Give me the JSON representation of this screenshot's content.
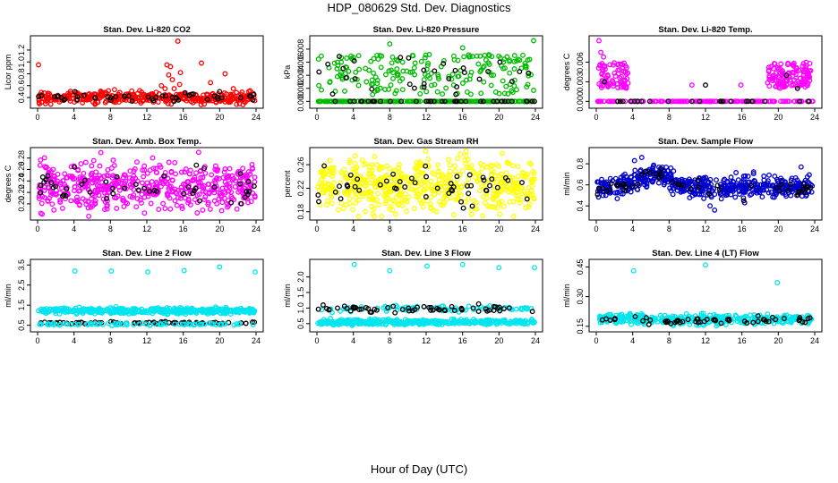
{
  "figure": {
    "title": "HDP_080629  Std. Dev. Diagnostics",
    "xlabel": "Hour of Day (UTC)"
  },
  "chart_data": [
    {
      "type": "scatter",
      "title": "Stan. Dev. Li-820 CO2",
      "ylabel": "Licor ppm",
      "xlim": [
        0,
        24
      ],
      "ylim": [
        0.28,
        1.38
      ],
      "xticks": [
        0,
        4,
        8,
        12,
        16,
        20,
        24
      ],
      "yticks": [
        0.4,
        0.6,
        0.8,
        1.0,
        1.2
      ],
      "ytick_labels": [
        "0.4",
        "0.6",
        "0.8",
        "1.0",
        "1.2"
      ],
      "grid": false,
      "series": [
        {
          "color": "#ff0000",
          "generate": {
            "count": 380,
            "kind": "noise",
            "base": 0.4,
            "spread": 0.05
          },
          "points": [
            [
              0.1,
              0.95
            ],
            [
              14.2,
              0.95
            ],
            [
              14.6,
              0.92
            ],
            [
              14.4,
              0.78
            ],
            [
              14.8,
              0.7
            ],
            [
              15.4,
              1.35
            ],
            [
              15.6,
              0.62
            ],
            [
              15.7,
              0.82
            ],
            [
              18.0,
              0.98
            ],
            [
              19.0,
              0.65
            ],
            [
              20.6,
              0.8
            ],
            [
              13.6,
              0.6
            ],
            [
              14.0,
              0.55
            ],
            [
              15.0,
              0.55
            ],
            [
              21.5,
              0.55
            ]
          ]
        },
        {
          "color": "#000000",
          "generate": {
            "count": 45,
            "kind": "noise",
            "base": 0.4,
            "spread": 0.03
          },
          "points": [
            [
              4.1,
              0.5
            ],
            [
              16.2,
              0.48
            ],
            [
              20.0,
              0.5
            ]
          ]
        }
      ]
    },
    {
      "type": "scatter",
      "title": "Stan. Dev. Li-820 Pressure",
      "ylabel": "kPa",
      "xlim": [
        0,
        24
      ],
      "ylim": [
        -0.0005,
        0.0095
      ],
      "xticks": [
        0,
        4,
        8,
        12,
        16,
        20,
        24
      ],
      "yticks": [
        0.0,
        0.002,
        0.004,
        0.006,
        0.008
      ],
      "ytick_labels": [
        "0.000",
        "0.002",
        "0.004",
        "0.006",
        "0.008"
      ],
      "grid": false,
      "series": [
        {
          "color": "#00bb00",
          "generate": {
            "count": 220,
            "kind": "zeros",
            "base": 0.0,
            "spread": 0.0
          },
          "points": []
        },
        {
          "color": "#00bb00",
          "generate": {
            "count": 200,
            "kind": "uniform",
            "base": 0.001,
            "spread": 0.0062
          },
          "points": [
            [
              8.0,
              0.0088
            ],
            [
              23.8,
              0.0093
            ],
            [
              16.0,
              0.0082
            ]
          ]
        },
        {
          "color": "#000000",
          "generate": {
            "count": 40,
            "kind": "zeros",
            "base": 0.0,
            "spread": 0.0
          },
          "points": []
        },
        {
          "color": "#000000",
          "generate": {
            "count": 28,
            "kind": "uniform",
            "base": 0.001,
            "spread": 0.006
          },
          "points": [
            [
              4.1,
              0.0062
            ],
            [
              20.1,
              0.006
            ]
          ]
        }
      ]
    },
    {
      "type": "scatter",
      "title": "Stan. Dev. Li-820 Temp.",
      "ylabel": "degrees C",
      "xlim": [
        0,
        24
      ],
      "ylim": [
        -0.0005,
        0.0095
      ],
      "xticks": [
        0,
        4,
        8,
        12,
        16,
        20,
        24
      ],
      "yticks": [
        0.0,
        0.003,
        0.006
      ],
      "ytick_labels": [
        "0.000",
        "0.003",
        "0.006"
      ],
      "grid": false,
      "series": [
        {
          "color": "#ff00ff",
          "generate": {
            "count": 160,
            "kind": "zeros",
            "base": 0.0,
            "spread": 0.0
          },
          "points": []
        },
        {
          "color": "#ff00ff",
          "generate": {
            "count": 75,
            "kind": "band",
            "base": 0.002,
            "spread": 0.004,
            "x0": 0.2,
            "x1": 3.5
          },
          "points": [
            [
              0.3,
              0.0093
            ],
            [
              0.5,
              0.0075
            ],
            [
              0.8,
              0.0068
            ]
          ]
        },
        {
          "color": "#ff00ff",
          "generate": {
            "count": 120,
            "kind": "band",
            "base": 0.002,
            "spread": 0.004,
            "x0": 18.8,
            "x1": 23.6
          },
          "points": []
        },
        {
          "color": "#ff00ff",
          "generate": {
            "count": 0,
            "kind": "noise",
            "base": 0.0,
            "spread": 0.0
          },
          "points": [
            [
              10.5,
              0.0025
            ],
            [
              15.9,
              0.0025
            ]
          ]
        },
        {
          "color": "#000000",
          "generate": {
            "count": 24,
            "kind": "zeros",
            "base": 0.0,
            "spread": 0.0
          },
          "points": [
            [
              0.9,
              0.003
            ],
            [
              12.0,
              0.0025
            ],
            [
              20.9,
              0.004
            ],
            [
              22.1,
              0.002
            ]
          ]
        }
      ]
    },
    {
      "type": "scatter",
      "title": "Stan. Dev. Amb. Box Temp.",
      "ylabel": "degrees C",
      "xlim": [
        0,
        24
      ],
      "ylim": [
        0.178,
        0.292
      ],
      "xticks": [
        0,
        4,
        8,
        12,
        16,
        20,
        24
      ],
      "yticks": [
        0.2,
        0.22,
        0.24,
        0.26,
        0.28
      ],
      "ytick_labels": [
        "0.20",
        "0.22",
        "0.24",
        "0.26",
        "0.28"
      ],
      "grid": false,
      "series": [
        {
          "color": "#ff00ff",
          "generate": {
            "count": 520,
            "kind": "noise",
            "base": 0.231,
            "spread": 0.02
          },
          "points": [
            [
              0.5,
              0.182
            ],
            [
              17.7,
              0.29
            ],
            [
              19.5,
              0.26
            ],
            [
              0.8,
              0.265
            ]
          ]
        },
        {
          "color": "#000000",
          "generate": {
            "count": 48,
            "kind": "noise",
            "base": 0.226,
            "spread": 0.015
          },
          "points": [
            [
              18.3,
              0.262
            ]
          ]
        }
      ]
    },
    {
      "type": "scatter",
      "title": "Stan. Dev. Gas Stream RH",
      "ylabel": "percent",
      "xlim": [
        0,
        24
      ],
      "ylim": [
        0.172,
        0.283
      ],
      "xticks": [
        0,
        4,
        8,
        12,
        16,
        20,
        24
      ],
      "yticks": [
        0.18,
        0.22,
        0.26
      ],
      "ytick_labels": [
        "0.18",
        "0.22",
        "0.26"
      ],
      "grid": false,
      "series": [
        {
          "color": "#ffff00",
          "generate": {
            "count": 560,
            "kind": "noise",
            "base": 0.225,
            "spread": 0.022
          },
          "points": [
            [
              4.2,
              0.275
            ],
            [
              17.0,
              0.176
            ],
            [
              16.4,
              0.275
            ]
          ]
        },
        {
          "color": "#000000",
          "generate": {
            "count": 48,
            "kind": "noise",
            "base": 0.224,
            "spread": 0.015
          },
          "points": [
            [
              0.8,
              0.258
            ]
          ]
        }
      ]
    },
    {
      "type": "scatter",
      "title": "Stan. Dev. Sample Flow",
      "ylabel": "ml/min",
      "xlim": [
        0,
        24
      ],
      "ylim": [
        0.3,
        0.92
      ],
      "xticks": [
        0,
        4,
        8,
        12,
        16,
        20,
        24
      ],
      "yticks": [
        0.4,
        0.6,
        0.8
      ],
      "ytick_labels": [
        "0.4",
        "0.6",
        "0.8"
      ],
      "grid": false,
      "series": [
        {
          "color": "#0000cc",
          "generate": {
            "count": 560,
            "kind": "hump",
            "base": 0.58,
            "spread": 0.05
          },
          "points": [
            [
              4.2,
              0.83
            ],
            [
              13.0,
              0.36
            ],
            [
              12.5,
              0.4
            ],
            [
              16.3,
              0.43
            ],
            [
              22.5,
              0.77
            ],
            [
              5.0,
              0.86
            ]
          ]
        },
        {
          "color": "#000000",
          "generate": {
            "count": 48,
            "kind": "hump",
            "base": 0.57,
            "spread": 0.03
          },
          "points": [
            [
              16.2,
              0.45
            ]
          ]
        }
      ]
    },
    {
      "type": "scatter",
      "title": "Stan. Dev. Line 2 Flow",
      "ylabel": "ml/min",
      "xlim": [
        0,
        24
      ],
      "ylim": [
        0.35,
        3.6
      ],
      "xticks": [
        0,
        4,
        8,
        12,
        16,
        20,
        24
      ],
      "yticks": [
        0.5,
        1.5,
        2.5,
        3.5
      ],
      "ytick_labels": [
        "0.5",
        "1.5",
        "2.5",
        "3.5"
      ],
      "grid": false,
      "series": [
        {
          "color": "#00e5ee",
          "generate": {
            "count": 440,
            "kind": "noise",
            "base": 1.22,
            "spread": 0.07
          },
          "points": [
            [
              4.1,
              3.2
            ],
            [
              8.1,
              3.2
            ],
            [
              12.1,
              3.15
            ],
            [
              16.1,
              3.22
            ],
            [
              20.0,
              3.4
            ],
            [
              23.9,
              3.15
            ]
          ]
        },
        {
          "color": "#000000",
          "generate": {
            "count": 70,
            "kind": "noise",
            "base": 0.62,
            "spread": 0.03
          },
          "points": []
        },
        {
          "color": "#00e5ee",
          "generate": {
            "count": 80,
            "kind": "noise",
            "base": 0.55,
            "spread": 0.03
          },
          "points": []
        }
      ]
    },
    {
      "type": "scatter",
      "title": "Stan. Dev. Line 3 Flow",
      "ylabel": "ml/min",
      "xlim": [
        0,
        24
      ],
      "ylim": [
        0.35,
        2.45
      ],
      "xticks": [
        0,
        4,
        8,
        12,
        16,
        20,
        24
      ],
      "yticks": [
        0.5,
        1.0,
        1.5,
        2.0
      ],
      "ytick_labels": [
        "0.5",
        "1.0",
        "1.5",
        "2.0"
      ],
      "grid": false,
      "series": [
        {
          "color": "#00e5ee",
          "generate": {
            "count": 420,
            "kind": "noise",
            "base": 0.55,
            "spread": 0.04
          },
          "points": [
            [
              4.1,
              2.4
            ],
            [
              8.0,
              2.2
            ],
            [
              12.1,
              2.35
            ],
            [
              16.0,
              2.4
            ],
            [
              20.0,
              2.3
            ],
            [
              23.9,
              2.3
            ]
          ]
        },
        {
          "color": "#00e5ee",
          "generate": {
            "count": 90,
            "kind": "noise",
            "base": 0.98,
            "spread": 0.05
          },
          "points": []
        },
        {
          "color": "#000000",
          "generate": {
            "count": 60,
            "kind": "noise",
            "base": 0.95,
            "spread": 0.06
          },
          "points": []
        }
      ]
    },
    {
      "type": "scatter",
      "title": "Stan. Dev. Line 4 (LT) Flow",
      "ylabel": "ml/min",
      "xlim": [
        0,
        24
      ],
      "ylim": [
        0.14,
        0.47
      ],
      "xticks": [
        0,
        4,
        8,
        12,
        16,
        20,
        24
      ],
      "yticks": [
        0.15,
        0.3,
        0.45
      ],
      "ytick_labels": [
        "0.15",
        "0.30",
        "0.45"
      ],
      "grid": false,
      "series": [
        {
          "color": "#00e5ee",
          "generate": {
            "count": 380,
            "kind": "noise",
            "base": 0.185,
            "spread": 0.013
          },
          "points": [
            [
              4.1,
              0.43
            ],
            [
              12.0,
              0.46
            ],
            [
              19.9,
              0.37
            ]
          ]
        },
        {
          "color": "#000000",
          "generate": {
            "count": 55,
            "kind": "noise",
            "base": 0.18,
            "spread": 0.012
          },
          "points": []
        }
      ]
    }
  ]
}
